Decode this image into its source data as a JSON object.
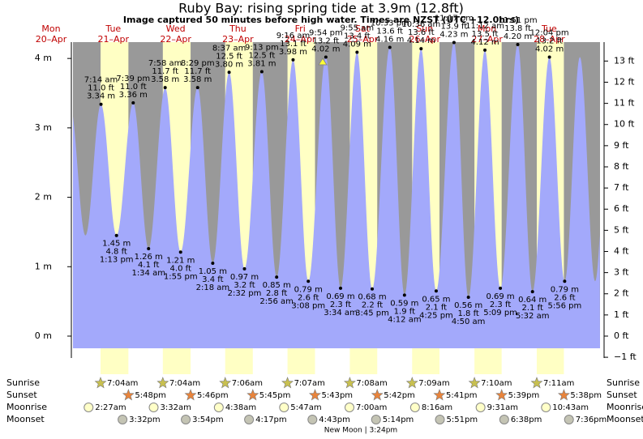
{
  "chart_data": {
    "type": "tide",
    "title": "Ruby Bay: rising  spring tide at 3.9m (12.8ft)",
    "subtitle": "Image captured 50 minutes before high water. Times are NZST (UTC +12.0hrs)",
    "days": [
      [
        "Mon",
        "20–Apr"
      ],
      [
        "Tue",
        "21–Apr"
      ],
      [
        "Wed",
        "22–Apr"
      ],
      [
        "Thu",
        "23–Apr"
      ],
      [
        "Fri",
        "24–Apr"
      ],
      [
        "Sat",
        "25–Apr"
      ],
      [
        "Sun",
        "26–Apr"
      ],
      [
        "Mon",
        "27–Apr"
      ],
      [
        "Tue",
        "28–Apr"
      ]
    ],
    "times": [
      "7:14 am",
      "1:13 pm",
      "7:39 pm",
      "1:34 am",
      "7:58 am",
      "1:55 pm",
      "8:29 pm",
      "2:18 am",
      "8:37 am",
      "2:32 pm",
      "9:13 pm",
      "2:56 am",
      "9:16 am",
      "3:08 pm",
      "9:54 pm",
      "3:34 am",
      "9:55 am",
      "3:45 pm",
      "10:33 pm",
      "4:12 am",
      "10:36 am",
      "4:25 pm",
      "11:17 pm",
      "4:50 am",
      "11:12 am",
      "5:09 pm",
      "11:51 pm",
      "5:32 am",
      "12:04 pm",
      "5:56 pm"
    ],
    "values": [
      3.34,
      1.45,
      3.36,
      1.26,
      3.58,
      1.21,
      3.58,
      1.05,
      3.8,
      0.97,
      3.81,
      0.85,
      3.98,
      0.79,
      4.02,
      0.69,
      4.09,
      0.68,
      4.16,
      0.59,
      4.14,
      0.65,
      4.23,
      0.56,
      4.12,
      0.69,
      4.2,
      0.64,
      4.02,
      0.79
    ],
    "value_labels": [
      "3.34 m",
      "1.45 m",
      "3.36 m",
      "1.26 m",
      "3.58 m",
      "1.21 m",
      "3.58 m",
      "1.05 m",
      "3.80 m",
      "0.97 m",
      "3.81 m",
      "0.85 m",
      "3.98 m",
      "0.79 m",
      "4.02 m",
      "0.69 m",
      "4.09 m",
      "0.68 m",
      "4.16 m",
      "0.59 m",
      "4.14 m",
      "0.65 m",
      "4.23 m",
      "0.56 m",
      "4.12 m",
      "0.69 m",
      "4.20 m",
      "0.64 m",
      "4.02 m",
      "0.79 m"
    ],
    "ft_labels": [
      "11.0 ft",
      "4.8 ft",
      "11.0 ft",
      "4.1 ft",
      "11.7 ft",
      "4.0 ft",
      "11.7 ft",
      "3.4 ft",
      "12.5 ft",
      "3.2 ft",
      "12.5 ft",
      "2.8 ft",
      "13.1 ft",
      "2.6 ft",
      "13.2 ft",
      "2.3 ft",
      "13.4 ft",
      "2.2 ft",
      "13.6 ft",
      "1.9 ft",
      "13.6 ft",
      "2.1 ft",
      "13.9 ft",
      "1.8 ft",
      "13.5 ft",
      "2.3 ft",
      "13.8 ft",
      "2.1 ft",
      "13.2 ft",
      "2.6 ft"
    ],
    "color": "#a3a9fb",
    "ylim": [
      -0.32,
      4.24
    ],
    "yticks": [
      {
        "value": 0,
        "label": "0 m"
      },
      {
        "value": 1,
        "label": "1 m"
      },
      {
        "value": 2,
        "label": "2 m"
      },
      {
        "value": 3,
        "label": "3 m"
      },
      {
        "value": 4,
        "label": "4 m"
      }
    ],
    "y2lim": [
      -1.05,
      13.91
    ],
    "y2ticks": [
      {
        "value": -1,
        "label": "−1 ft"
      },
      {
        "value": 0,
        "label": "0 ft"
      },
      {
        "value": 1,
        "label": "1 ft"
      },
      {
        "value": 2,
        "label": "2 ft"
      },
      {
        "value": 3,
        "label": "3 ft"
      },
      {
        "value": 4,
        "label": "4 ft"
      },
      {
        "value": 5,
        "label": "5 ft"
      },
      {
        "value": 6,
        "label": "6 ft"
      },
      {
        "value": 7,
        "label": "7 ft"
      },
      {
        "value": 8,
        "label": "8 ft"
      },
      {
        "value": 9,
        "label": "9 ft"
      },
      {
        "value": 10,
        "label": "10 ft"
      },
      {
        "value": 11,
        "label": "11 ft"
      },
      {
        "value": 12,
        "label": "12 ft"
      },
      {
        "value": 13,
        "label": "13 ft"
      }
    ],
    "astronomy": {
      "row_labels": [
        "Sunrise",
        "Sunset",
        "Moonrise",
        "Moonset"
      ],
      "rows": [
        [
          "7:04am",
          "7:04am",
          "7:06am",
          "7:07am",
          "7:08am",
          "7:09am",
          "7:10am",
          "7:11am"
        ],
        [
          "5:48pm",
          "5:46pm",
          "5:45pm",
          "5:43pm",
          "5:42pm",
          "5:41pm",
          "5:39pm",
          "5:38pm"
        ],
        [
          "2:27am",
          "3:32am",
          "4:38am",
          "5:47am",
          "7:00am",
          "8:16am",
          "9:31am",
          "10:43am"
        ],
        [
          "3:32pm",
          "3:54pm",
          "4:17pm",
          "4:43pm",
          "5:14pm",
          "5:51pm",
          "6:38pm",
          "7:36pm"
        ]
      ],
      "new_moon": "New Moon | 3:24pm"
    }
  }
}
